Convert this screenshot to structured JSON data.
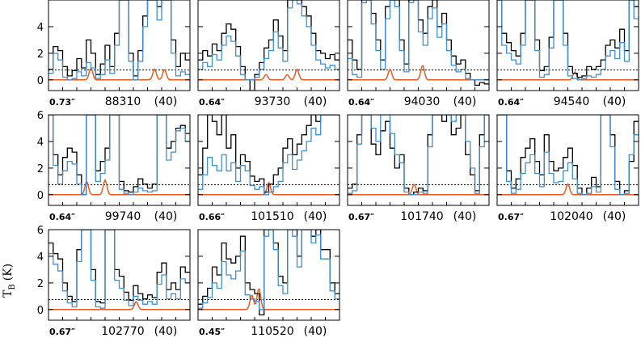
{
  "chart_data": {
    "type": "line",
    "ylabel": "T",
    "ylabel_sub": "B",
    "ylabel_unit": "(K)",
    "ylim": [
      -0.8,
      6
    ],
    "yticks": [
      "0",
      "2",
      "4",
      "6"
    ],
    "threshold_K": 0.75,
    "colors": {
      "observed": "#000000",
      "model_total": "#3d8fd6",
      "model_species": "#f05a1e",
      "threshold": "#000000"
    },
    "panels": [
      {
        "resolution": "0.73″",
        "frequency": "88310",
        "width": "(40)",
        "show_y": false,
        "observed": [
          0.8,
          2.5,
          2.2,
          1.0,
          0.3,
          0.7,
          1.6,
          0.9,
          3.0,
          2.0,
          0.4,
          1.2,
          2.6,
          1.0,
          3.5,
          6.5,
          6.5,
          2.0,
          0.3,
          2.2,
          4.8,
          7.0,
          6.5,
          5.5,
          7.0,
          6.5,
          3.0,
          1.0,
          2.0,
          1.5
        ],
        "model": [
          0.5,
          2.0,
          1.5,
          0.2,
          0.0,
          0.1,
          0.6,
          0.3,
          1.3,
          0.9,
          0.1,
          0.4,
          1.5,
          0.5,
          2.6,
          6.0,
          6.0,
          1.4,
          0.0,
          1.4,
          4.0,
          6.5,
          6.0,
          4.5,
          6.5,
          6.0,
          2.0,
          0.3,
          0.6,
          0.4
        ],
        "species_peaks": [
          [
            0.3,
            0.9
          ],
          [
            0.75,
            0.8
          ],
          [
            0.82,
            0.8
          ]
        ]
      },
      {
        "resolution": "0.64″",
        "frequency": "93730",
        "width": "(40)",
        "show_y": false,
        "observed": [
          1.5,
          2.2,
          1.8,
          2.7,
          2.2,
          3.5,
          4.2,
          3.8,
          2.5,
          1.0,
          0.0,
          -1.1,
          0.4,
          1.3,
          2.4,
          3.0,
          4.5,
          3.3,
          2.2,
          6.0,
          6.5,
          6.2,
          5.5,
          4.8,
          3.5,
          2.2,
          2.0,
          1.6,
          1.9,
          1.5
        ],
        "model": [
          0.8,
          1.3,
          1.0,
          1.9,
          1.5,
          2.6,
          3.3,
          2.9,
          1.8,
          0.4,
          0.0,
          0.0,
          0.2,
          0.8,
          1.6,
          2.2,
          3.6,
          2.4,
          1.4,
          5.4,
          6.0,
          5.7,
          4.8,
          4.0,
          2.6,
          1.5,
          1.2,
          0.9,
          1.1,
          0.8
        ],
        "species_peaks": [
          [
            0.48,
            0.4
          ],
          [
            0.63,
            0.4
          ],
          [
            0.7,
            0.8
          ]
        ]
      },
      {
        "resolution": "0.64″",
        "frequency": "94030",
        "width": "(40)",
        "show_y": false,
        "observed": [
          3.0,
          1.5,
          0.8,
          6.5,
          6.5,
          5.0,
          3.0,
          1.5,
          5.5,
          6.5,
          6.0,
          3.0,
          1.2,
          6.5,
          6.5,
          4.5,
          3.5,
          5.5,
          6.0,
          4.0,
          5.0,
          3.0,
          1.8,
          1.2,
          1.5,
          0.5,
          0.0,
          -0.4,
          -0.2,
          -0.3
        ],
        "model": [
          1.6,
          0.4,
          0.2,
          5.8,
          6.0,
          4.2,
          2.2,
          0.8,
          4.6,
          6.0,
          5.5,
          2.2,
          0.6,
          5.8,
          6.0,
          3.6,
          2.6,
          4.6,
          5.4,
          3.2,
          4.2,
          2.2,
          1.1,
          0.6,
          0.8,
          0.1,
          0.0,
          0.0,
          0.0,
          0.0
        ],
        "species_peaks": [
          [
            0.3,
            0.8
          ],
          [
            0.53,
            1.1
          ]
        ]
      },
      {
        "resolution": "0.64″",
        "frequency": "94540",
        "width": "(40)",
        "show_y": false,
        "observed": [
          6.5,
          3.5,
          2.8,
          2.2,
          1.8,
          3.5,
          6.5,
          6.5,
          3.0,
          0.7,
          1.0,
          3.2,
          6.5,
          6.5,
          3.5,
          1.0,
          0.5,
          0.2,
          0.3,
          1.0,
          0.8,
          1.0,
          1.5,
          2.6,
          3.0,
          2.4,
          3.8,
          2.2,
          6.5,
          5.5
        ],
        "model": [
          6.0,
          2.6,
          2.0,
          1.5,
          1.2,
          2.6,
          6.0,
          6.0,
          2.2,
          0.2,
          0.4,
          2.4,
          6.0,
          6.0,
          2.6,
          0.3,
          0.1,
          0.0,
          0.1,
          0.3,
          0.2,
          0.4,
          0.8,
          1.8,
          2.2,
          1.6,
          2.8,
          1.4,
          6.0,
          4.6
        ],
        "species_peaks": [
          [
            0.55,
            0.6
          ]
        ]
      },
      {
        "resolution": "0.64″",
        "frequency": "99740",
        "width": "(40)",
        "show_y": true,
        "observed": [
          6.5,
          3.0,
          1.5,
          2.8,
          3.5,
          3.2,
          1.5,
          0.0,
          6.5,
          6.5,
          1.8,
          2.5,
          3.5,
          6.5,
          6.5,
          1.0,
          0.3,
          0.2,
          0.6,
          1.2,
          0.8,
          0.5,
          0.8,
          6.5,
          6.5,
          3.5,
          4.0,
          5.0,
          5.2,
          4.6
        ],
        "model": [
          6.0,
          2.2,
          0.8,
          1.8,
          2.5,
          2.3,
          0.8,
          0.0,
          6.0,
          6.0,
          1.0,
          1.6,
          2.6,
          6.0,
          6.0,
          0.4,
          0.1,
          0.0,
          0.2,
          0.5,
          0.3,
          0.2,
          0.3,
          6.0,
          6.0,
          2.6,
          3.2,
          4.8,
          5.0,
          4.0
        ],
        "species_peaks": [
          [
            0.27,
            1.0
          ],
          [
            0.4,
            1.1
          ]
        ]
      },
      {
        "resolution": "0.66″",
        "frequency": "101510",
        "width": "(40)",
        "show_y": false,
        "observed": [
          1.5,
          3.5,
          6.0,
          5.5,
          4.5,
          6.0,
          3.5,
          4.5,
          2.0,
          3.0,
          2.5,
          1.4,
          1.0,
          1.2,
          0.2,
          0.8,
          1.5,
          2.0,
          3.5,
          4.2,
          3.0,
          3.8,
          4.5,
          5.2,
          6.0,
          5.5,
          6.5,
          6.5,
          6.5,
          6.5
        ],
        "model": [
          0.4,
          1.5,
          2.8,
          2.2,
          1.8,
          3.0,
          1.8,
          2.4,
          1.0,
          2.2,
          1.8,
          0.7,
          0.4,
          0.6,
          0.0,
          0.2,
          0.6,
          1.0,
          2.4,
          3.0,
          1.9,
          2.6,
          3.3,
          4.0,
          5.0,
          4.5,
          6.0,
          6.0,
          6.0,
          6.0
        ],
        "species_peaks": [
          [
            0.5,
            0.9
          ]
        ]
      },
      {
        "resolution": "0.67″",
        "frequency": "101740",
        "width": "(40)",
        "show_y": false,
        "observed": [
          0.5,
          0.8,
          4.5,
          6.5,
          6.5,
          3.8,
          3.0,
          4.8,
          5.5,
          3.5,
          2.0,
          3.0,
          0.5,
          0.0,
          0.2,
          0.5,
          0.3,
          4.5,
          6.5,
          6.0,
          5.5,
          6.0,
          4.5,
          5.0,
          6.0,
          3.0,
          1.5,
          0.3,
          4.5,
          6.5
        ],
        "model": [
          0.1,
          0.3,
          3.8,
          6.0,
          6.0,
          5.0,
          4.0,
          6.0,
          6.0,
          4.6,
          3.0,
          2.4,
          0.2,
          0.0,
          0.0,
          0.2,
          0.1,
          3.6,
          6.0,
          6.0,
          6.0,
          6.0,
          5.5,
          6.0,
          6.0,
          4.0,
          2.0,
          0.1,
          3.6,
          6.0
        ],
        "species_peaks": [
          [
            0.47,
            0.8
          ]
        ]
      },
      {
        "resolution": "0.67″",
        "frequency": "102040",
        "width": "(40)",
        "show_y": false,
        "observed": [
          6.5,
          6.5,
          1.8,
          0.5,
          1.2,
          2.8,
          3.5,
          4.2,
          2.5,
          1.5,
          4.5,
          2.5,
          1.8,
          2.0,
          2.8,
          3.5,
          2.2,
          0.5,
          0.0,
          0.5,
          1.3,
          0.6,
          6.5,
          6.5,
          4.5,
          1.0,
          0.0,
          0.3,
          2.5,
          5.5
        ],
        "model": [
          6.0,
          6.0,
          1.0,
          0.1,
          0.4,
          1.6,
          2.4,
          3.0,
          1.6,
          0.6,
          3.2,
          1.6,
          0.9,
          1.0,
          1.8,
          2.4,
          1.2,
          0.1,
          0.0,
          0.1,
          0.6,
          0.2,
          6.0,
          6.0,
          3.6,
          0.4,
          0.0,
          0.1,
          3.0,
          4.5
        ],
        "species_peaks": [
          [
            0.5,
            0.8
          ]
        ]
      },
      {
        "resolution": "0.67″",
        "frequency": "102770",
        "width": "(40)",
        "show_y": true,
        "observed": [
          5.0,
          4.2,
          3.8,
          2.0,
          1.0,
          0.6,
          4.5,
          6.5,
          6.5,
          3.0,
          0.6,
          0.5,
          6.5,
          6.5,
          3.0,
          2.5,
          1.3,
          0.7,
          1.8,
          1.2,
          0.8,
          1.1,
          0.9,
          2.8,
          3.5,
          1.5,
          2.0,
          1.5,
          3.2,
          2.8
        ],
        "model": [
          4.2,
          3.4,
          2.9,
          1.4,
          0.5,
          0.2,
          3.6,
          6.0,
          6.0,
          2.2,
          0.2,
          0.1,
          6.0,
          6.0,
          2.2,
          1.6,
          0.7,
          0.3,
          1.0,
          0.7,
          0.4,
          0.6,
          0.4,
          1.9,
          2.6,
          0.8,
          1.2,
          0.8,
          2.3,
          2.0
        ],
        "species_peaks": [
          [
            0.62,
            0.6
          ]
        ]
      },
      {
        "resolution": "0.45″",
        "frequency": "110520",
        "width": "(40)",
        "show_y": false,
        "observed": [
          0.4,
          1.0,
          1.6,
          3.2,
          2.6,
          5.0,
          3.8,
          3.5,
          4.0,
          5.5,
          2.0,
          1.5,
          1.2,
          -0.4,
          6.5,
          6.5,
          5.0,
          2.5,
          2.0,
          6.5,
          6.0,
          4.0,
          6.5,
          6.5,
          5.5,
          6.0,
          4.5,
          4.5,
          2.0,
          1.2
        ],
        "model": [
          0.1,
          0.5,
          0.9,
          2.0,
          1.6,
          3.6,
          2.6,
          2.3,
          2.9,
          4.4,
          1.1,
          0.8,
          0.6,
          0.0,
          5.5,
          6.0,
          4.5,
          1.8,
          1.2,
          6.0,
          5.5,
          3.2,
          6.0,
          6.0,
          5.0,
          5.6,
          3.8,
          3.8,
          1.4,
          0.8
        ],
        "species_peaks": [
          [
            0.38,
            1.1
          ],
          [
            0.43,
            1.6
          ]
        ]
      }
    ]
  }
}
